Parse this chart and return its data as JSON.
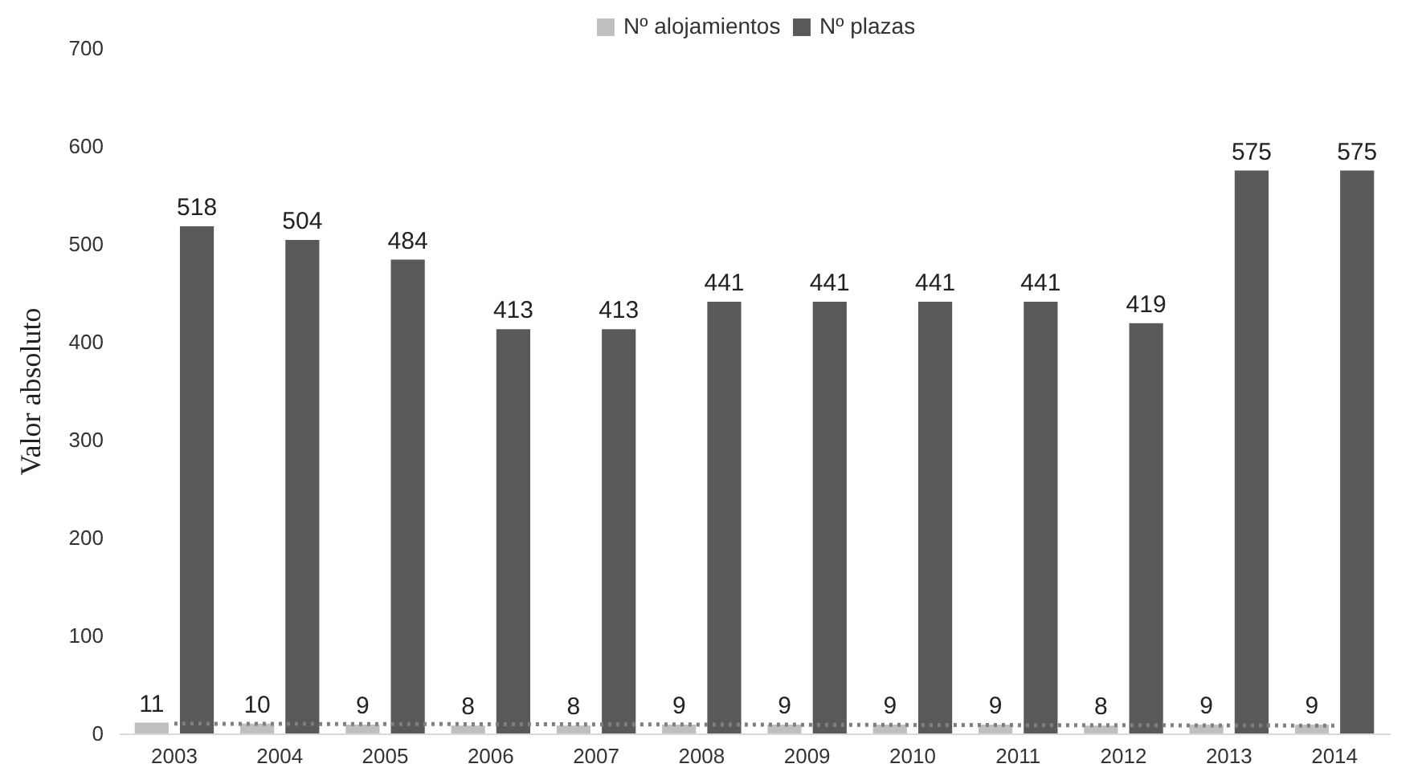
{
  "chart_data": {
    "type": "bar",
    "ylabel": "Valor absoluto",
    "categories": [
      "2003",
      "2004",
      "2005",
      "2006",
      "2007",
      "2008",
      "2009",
      "2010",
      "2011",
      "2012",
      "2013",
      "2014"
    ],
    "series": [
      {
        "name": "Nº alojamientos",
        "color": "#bfbfbf",
        "values": [
          11,
          10,
          9,
          8,
          8,
          9,
          9,
          9,
          9,
          8,
          9,
          9
        ],
        "value_labels": [
          "11",
          "10",
          "9",
          "8",
          "8",
          "9",
          "9",
          "9",
          "9",
          "8",
          "9",
          "9"
        ]
      },
      {
        "name": "Nº plazas",
        "color": "#595959",
        "values": [
          518,
          504,
          484,
          413,
          413,
          441,
          441,
          441,
          441,
          419,
          575,
          575
        ],
        "value_labels": [
          "518",
          "504",
          "484",
          "413",
          "413",
          "441",
          "441",
          "441",
          "441",
          "419",
          "575",
          "575"
        ]
      },
      {
        "type": "line",
        "color": "#7f7f7f",
        "line_style": "dotted",
        "values": [
          10,
          9.8,
          9.6,
          9.5,
          9.3,
          9.1,
          8.9,
          8.7,
          8.5,
          8.4,
          8.2,
          8
        ]
      }
    ],
    "ylim": [
      0,
      700
    ],
    "yticks": [
      0,
      100,
      200,
      300,
      400,
      500,
      600,
      700
    ],
    "grid": false,
    "legend": "top"
  }
}
